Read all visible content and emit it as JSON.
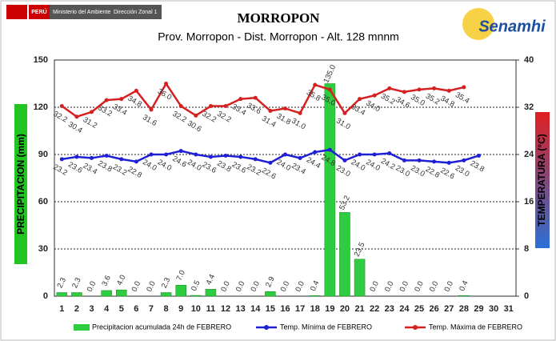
{
  "header": {
    "country": "PERÚ",
    "ministry": "Ministerio del Ambiente",
    "office": "Dirección Zonal 1",
    "logo": "Senamhi"
  },
  "chart_data": {
    "type": "bar-line",
    "title": "MORROPON",
    "subtitle": "Prov. Morropon - Dist. Morropon - Alt. 128 mnnm",
    "ylabel": "PRECIPITACION (mm)",
    "y2label": "TEMPERATURA (°C)",
    "categories": [
      "1",
      "2",
      "3",
      "4",
      "5",
      "6",
      "7",
      "8",
      "9",
      "10",
      "11",
      "12",
      "13",
      "14",
      "15",
      "16",
      "17",
      "18",
      "19",
      "20",
      "21",
      "22",
      "23",
      "24",
      "25",
      "26",
      "27",
      "28",
      "29",
      "30",
      "31"
    ],
    "ylim": [
      0,
      150
    ],
    "yticks": [
      0,
      30,
      60,
      90,
      120,
      150
    ],
    "y2lim": [
      0,
      40
    ],
    "y2ticks": [
      0,
      8,
      16,
      24,
      32,
      40
    ],
    "grid": true,
    "legend": "bottom",
    "series": [
      {
        "name": "Precipitacion acumulada 24h de FEBRERO",
        "type": "bar",
        "color": "#2ecc40",
        "values": [
          2.3,
          2.3,
          0,
          3.6,
          4,
          0,
          0,
          2.3,
          7,
          0.5,
          4.4,
          0,
          0,
          0,
          2.9,
          0,
          0,
          0.4,
          135,
          53.2,
          23.5,
          0,
          0,
          0,
          0,
          0,
          0,
          0.4,
          null,
          null,
          null
        ],
        "value_labels": [
          "2.3",
          "2.3",
          "0.0",
          "3.6",
          "4.0",
          "0.0",
          "0.0",
          "2.3",
          "7.0",
          "0.5",
          "4.4",
          "0.0",
          "0.0",
          "0.0",
          "2.9",
          "0.0",
          "0.0",
          "0.4",
          "135.0",
          "53.2",
          "23.5",
          "0.0",
          "0.0",
          "0.0",
          "0.0",
          "0.0",
          "0.0",
          "0.4",
          null,
          null,
          null
        ]
      },
      {
        "name": "Temp. Mínima de FEBRERO",
        "type": "line",
        "axis": "y2",
        "color": "#1f1fd6",
        "values": [
          23.2,
          23.6,
          23.4,
          23.8,
          23.2,
          22.8,
          24,
          24,
          24.6,
          24,
          23.6,
          23.8,
          23.6,
          23.2,
          22.6,
          24,
          23.4,
          24.4,
          24.8,
          23,
          24,
          24,
          24.2,
          23,
          23,
          22.8,
          22.6,
          23,
          23.8,
          null,
          null
        ],
        "value_labels": [
          "23.2",
          "23.6",
          "23.4",
          "23.8",
          "23.2",
          "22.8",
          "24.0",
          "24.0",
          "24.6",
          "24.0",
          "23.6",
          "23.8",
          "23.6",
          "23.2",
          "22.6",
          "24.0",
          "23.4",
          "24.4",
          "24.8",
          "23.0",
          "24.0",
          "24.0",
          "24.2",
          "23.0",
          "23.0",
          "22.8",
          "22.6",
          "23.0",
          "23.8",
          null,
          null
        ]
      },
      {
        "name": "Temp. Máxima de FEBRERO",
        "type": "line",
        "axis": "y2",
        "color": "#d62020",
        "values": [
          32.2,
          30.4,
          31.2,
          33.2,
          33.4,
          34.8,
          31.6,
          36,
          32.2,
          30.6,
          32.2,
          32.2,
          33.4,
          33.6,
          31.4,
          31.8,
          31,
          35.8,
          35,
          31,
          33.4,
          34,
          35.2,
          34.6,
          35,
          35.2,
          34.8,
          35.4,
          null,
          null,
          null
        ],
        "value_labels": [
          "32.2",
          "30.4",
          "31.2",
          "33.2",
          "33.4",
          "34.8",
          "31.6",
          "36.0",
          "32.2",
          "30.6",
          "32.2",
          "32.2",
          "33.4",
          "33.6",
          "31.4",
          "31.8",
          "31.0",
          "35.8",
          "35.0",
          "31.0",
          "33.4",
          "34.0",
          "35.2",
          "34.6",
          "35.0",
          "35.2",
          "34.8",
          "35.4",
          null,
          null,
          null
        ]
      }
    ]
  }
}
